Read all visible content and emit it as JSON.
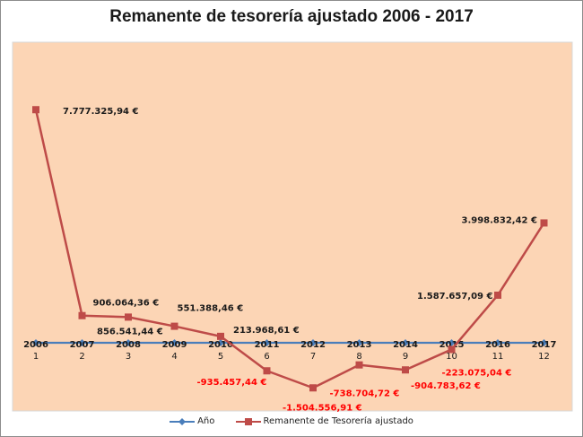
{
  "chart_data": {
    "type": "line",
    "title": "Remanente de tesorería ajustado 2006 - 2017",
    "x": [
      1,
      2,
      3,
      4,
      5,
      6,
      7,
      8,
      9,
      10,
      11,
      12
    ],
    "categories": [
      "1",
      "2",
      "3",
      "4",
      "5",
      "6",
      "7",
      "8",
      "9",
      "10",
      "11",
      "12"
    ],
    "series": [
      {
        "name": "Año",
        "color": "#4a7ebb",
        "values": [
          2006,
          2007,
          2008,
          2009,
          2010,
          2011,
          2012,
          2013,
          2014,
          2015,
          2016,
          2017
        ],
        "labels": [
          "2006",
          "2007",
          "2008",
          "2009",
          "2010",
          "2011",
          "2012",
          "2013",
          "2014",
          "2015",
          "2016",
          "2017"
        ]
      },
      {
        "name": "Remanente de Tesorería ajustado",
        "color": "#be4b48",
        "values": [
          7777325.94,
          906064.36,
          856541.44,
          551388.46,
          213968.61,
          -935457.44,
          -1504556.91,
          -738704.72,
          -904783.62,
          -223075.04,
          1587657.09,
          3998832.42
        ],
        "labels": [
          "7.777.325,94 €",
          "906.064,36 €",
          "856.541,44 €",
          "551.388,46 €",
          "213.968,61 €",
          "-935.457,44 €",
          "-1.504.556,91 €",
          "-738.704,72 €",
          "-904.783,62 €",
          "-223.075,04 €",
          "1.587.657,09 €",
          "3.998.832,42 €"
        ]
      }
    ],
    "grid": false,
    "legend": "bottom",
    "plot_background": "#fcd5b5",
    "negative_label_color": "#ff0000"
  }
}
